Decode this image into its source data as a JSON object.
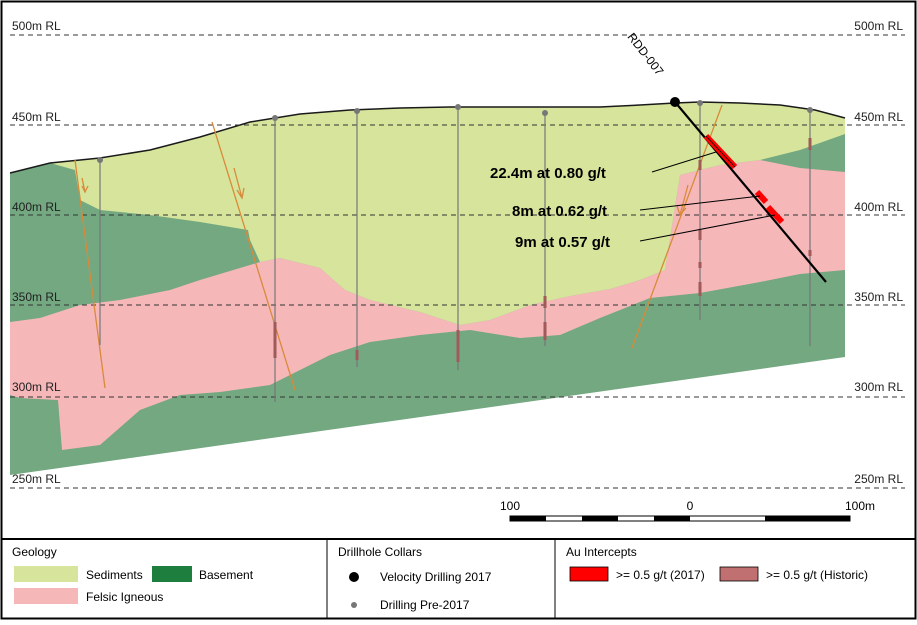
{
  "rl_labels": {
    "rl500": "500m RL",
    "rl450": "450m RL",
    "rl400": "400m RL",
    "rl350": "350m RL",
    "rl300": "300m RL",
    "rl250": "250m RL"
  },
  "drillhole_label": "RDD-007",
  "intercepts": {
    "i1": "22.4m at 0.80 g/t",
    "i2": "8m at 0.62 g/t",
    "i3": "9m at 0.57 g/t"
  },
  "scale": {
    "left": "100",
    "middle": "0",
    "right": "100m"
  },
  "legend": {
    "geology": {
      "heading": "Geology",
      "sediments": "Sediments",
      "basement": "Basement",
      "felsic": "Felsic Igneous"
    },
    "collars": {
      "heading": "Drillhole Collars",
      "velocity": "Velocity Drilling 2017",
      "pre": "Drilling Pre-2017"
    },
    "au": {
      "heading": "Au Intercepts",
      "y2017": ">= 0.5 g/t (2017)",
      "historic": ">= 0.5 g/t (Historic)"
    }
  },
  "colors": {
    "sediments": "#d6e59b",
    "basement": "#73a881",
    "felsic": "#f6b7b9",
    "basement_legend": "#1e7e3d",
    "intercept_2017": "#ff0000",
    "intercept_historic": "#c07070",
    "fault": "#d88a3a"
  }
}
